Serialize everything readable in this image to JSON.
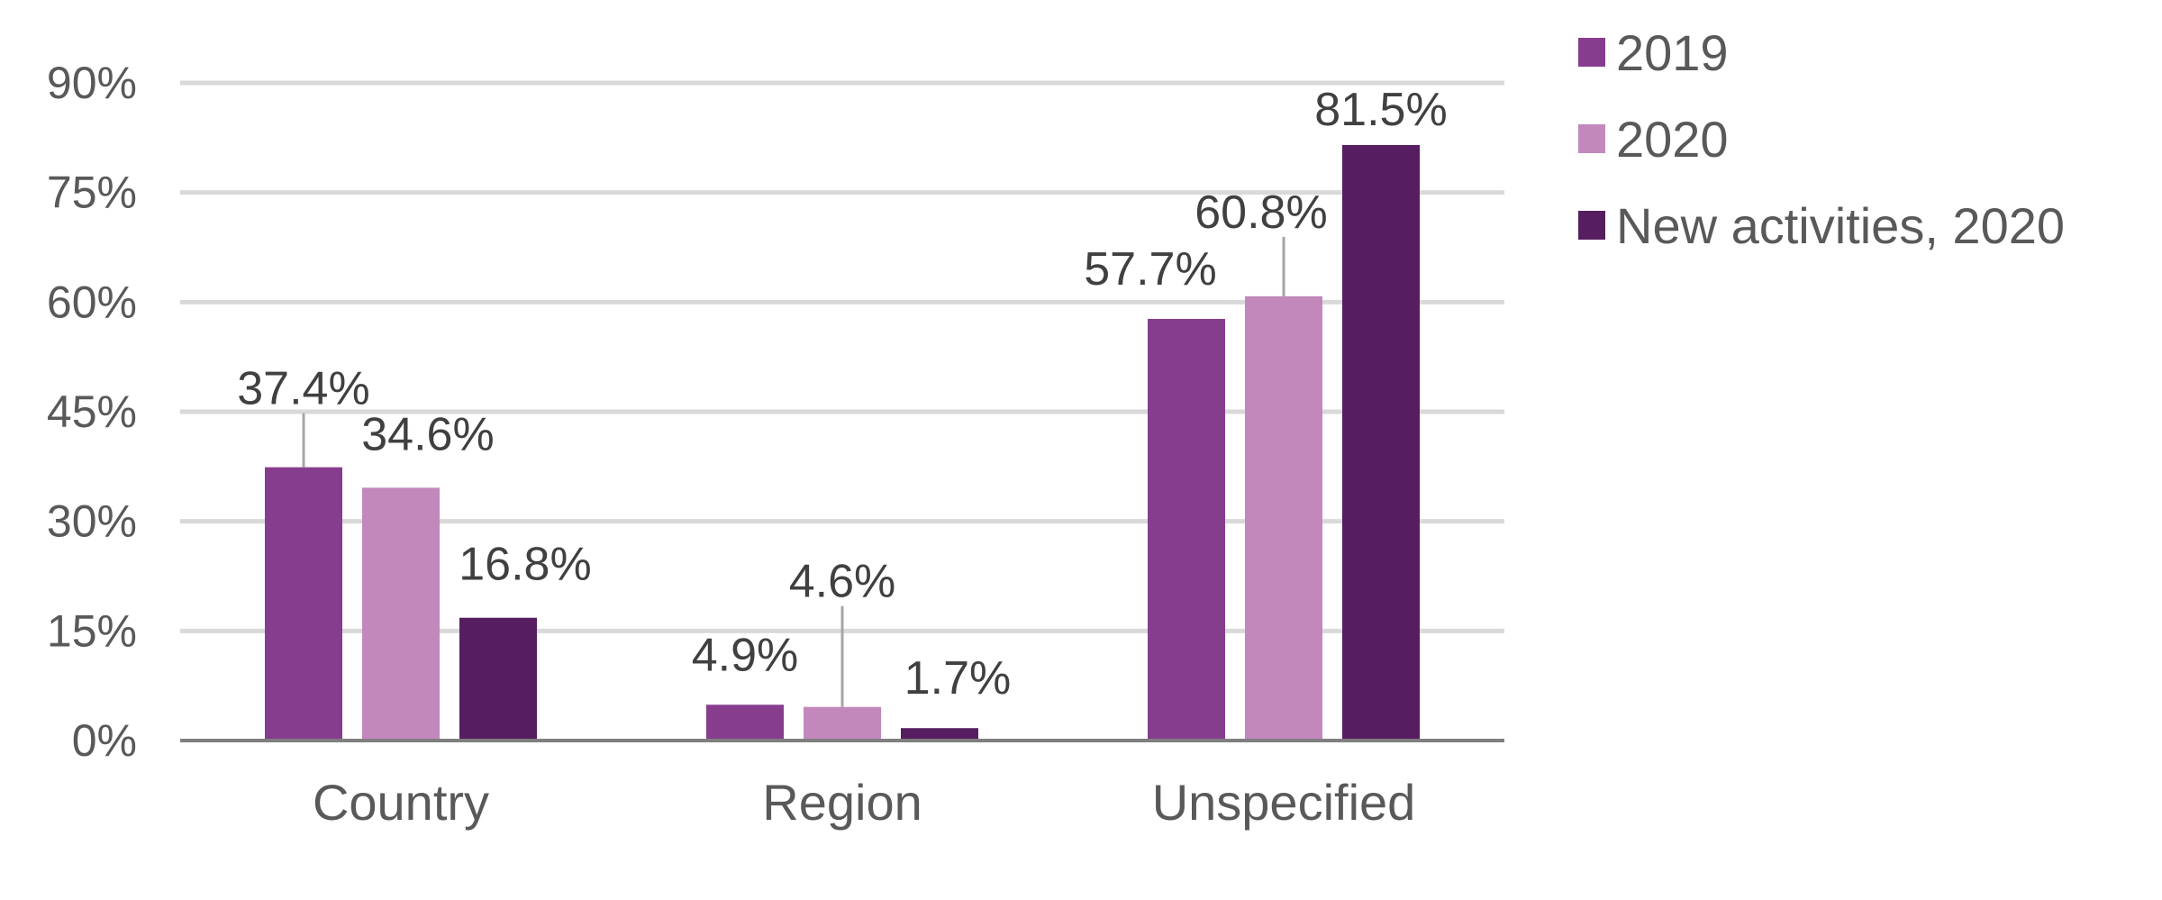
{
  "chart_data": {
    "type": "bar",
    "categories": [
      "Country",
      "Region",
      "Unspecified"
    ],
    "series": [
      {
        "name": "2019",
        "values": [
          37.4,
          4.9,
          57.7
        ],
        "labels": [
          "37.4%",
          "4.9%",
          "57.7%"
        ],
        "color": "#873D8D"
      },
      {
        "name": "2020",
        "values": [
          34.6,
          4.6,
          60.8
        ],
        "labels": [
          "34.6%",
          "4.6%",
          "60.8%"
        ],
        "color": "#C288BC"
      },
      {
        "name": "New activities, 2020",
        "values": [
          16.8,
          1.7,
          81.5
        ],
        "labels": [
          "16.8%",
          "1.7%",
          "81.5%"
        ],
        "color": "#561E60"
      }
    ],
    "ylim": [
      0,
      90
    ],
    "yticks": [
      0,
      15,
      30,
      45,
      60,
      75,
      90
    ],
    "ytick_labels": [
      "0%",
      "15%",
      "30%",
      "45%",
      "60%",
      "75%",
      "90%"
    ],
    "grid": true,
    "legend_position": "top-right",
    "title": "",
    "xlabel": "",
    "ylabel": ""
  }
}
